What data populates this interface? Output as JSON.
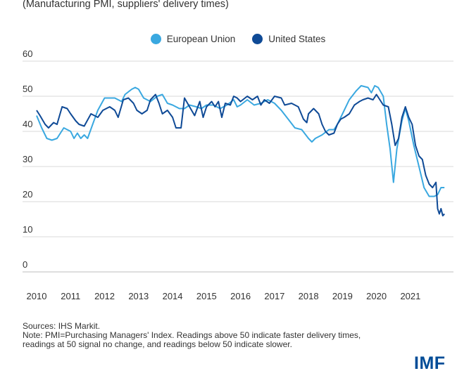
{
  "chart_data": {
    "type": "line",
    "title": "",
    "subtitle": "(Manufacturing PMI, suppliers' delivery times)",
    "xlabel": "",
    "ylabel": "",
    "ylim": [
      0,
      60
    ],
    "yticks": [
      0,
      10,
      20,
      30,
      40,
      50,
      60
    ],
    "xlim": [
      2010,
      2022.1
    ],
    "xticks": [
      2010,
      2011,
      2012,
      2013,
      2014,
      2015,
      2016,
      2017,
      2018,
      2019,
      2020,
      2021
    ],
    "grid": true,
    "legend_position": "top-center",
    "series": [
      {
        "name": "European Union",
        "color": "#3aa8e0",
        "points": [
          [
            2010.0,
            44.5
          ],
          [
            2010.15,
            41
          ],
          [
            2010.3,
            38
          ],
          [
            2010.45,
            37.5
          ],
          [
            2010.6,
            38
          ],
          [
            2010.8,
            41
          ],
          [
            2011.0,
            40
          ],
          [
            2011.1,
            38
          ],
          [
            2011.2,
            39.5
          ],
          [
            2011.3,
            38
          ],
          [
            2011.4,
            39
          ],
          [
            2011.5,
            38
          ],
          [
            2011.65,
            42
          ],
          [
            2011.8,
            46
          ],
          [
            2012.0,
            49.5
          ],
          [
            2012.3,
            49.5
          ],
          [
            2012.5,
            48.5
          ],
          [
            2012.6,
            50.5
          ],
          [
            2012.8,
            52
          ],
          [
            2012.9,
            52.5
          ],
          [
            2013.0,
            52
          ],
          [
            2013.15,
            49.5
          ],
          [
            2013.35,
            48.5
          ],
          [
            2013.55,
            50
          ],
          [
            2013.7,
            50.5
          ],
          [
            2013.85,
            48
          ],
          [
            2014.0,
            47.5
          ],
          [
            2014.2,
            46.5
          ],
          [
            2014.35,
            46.5
          ],
          [
            2014.5,
            47.5
          ],
          [
            2014.7,
            47
          ],
          [
            2014.85,
            46.5
          ],
          [
            2015.0,
            47.5
          ],
          [
            2015.2,
            47.5
          ],
          [
            2015.4,
            46.5
          ],
          [
            2015.6,
            47.5
          ],
          [
            2015.8,
            49
          ],
          [
            2015.9,
            47
          ],
          [
            2016.0,
            47.5
          ],
          [
            2016.2,
            49
          ],
          [
            2016.4,
            47.5
          ],
          [
            2016.6,
            48
          ],
          [
            2016.8,
            49
          ],
          [
            2017.0,
            48
          ],
          [
            2017.2,
            46
          ],
          [
            2017.4,
            43.5
          ],
          [
            2017.6,
            41
          ],
          [
            2017.8,
            40.5
          ],
          [
            2018.0,
            38
          ],
          [
            2018.1,
            37
          ],
          [
            2018.2,
            38
          ],
          [
            2018.4,
            39
          ],
          [
            2018.6,
            40.5
          ],
          [
            2018.75,
            40.5
          ],
          [
            2018.85,
            42
          ],
          [
            2019.0,
            45
          ],
          [
            2019.2,
            49
          ],
          [
            2019.4,
            51.5
          ],
          [
            2019.55,
            53
          ],
          [
            2019.75,
            52.5
          ],
          [
            2019.85,
            51
          ],
          [
            2019.95,
            53
          ],
          [
            2020.05,
            52.5
          ],
          [
            2020.2,
            50
          ],
          [
            2020.3,
            42
          ],
          [
            2020.4,
            35
          ],
          [
            2020.5,
            25.5
          ],
          [
            2020.6,
            35
          ],
          [
            2020.75,
            43
          ],
          [
            2020.85,
            46.5
          ],
          [
            2020.95,
            43
          ],
          [
            2021.1,
            36
          ],
          [
            2021.25,
            30
          ],
          [
            2021.4,
            24
          ],
          [
            2021.55,
            21.5
          ],
          [
            2021.7,
            21.5
          ],
          [
            2021.8,
            22
          ],
          [
            2021.9,
            24
          ],
          [
            2022.0,
            24
          ]
        ]
      },
      {
        "name": "United States",
        "color": "#0f4a96",
        "points": [
          [
            2010.0,
            46
          ],
          [
            2010.1,
            44.5
          ],
          [
            2010.25,
            42
          ],
          [
            2010.35,
            41
          ],
          [
            2010.5,
            42.5
          ],
          [
            2010.6,
            42
          ],
          [
            2010.75,
            47
          ],
          [
            2010.9,
            46.5
          ],
          [
            2011.0,
            45
          ],
          [
            2011.15,
            43
          ],
          [
            2011.25,
            42
          ],
          [
            2011.4,
            41.5
          ],
          [
            2011.6,
            45
          ],
          [
            2011.8,
            44
          ],
          [
            2011.95,
            46
          ],
          [
            2012.15,
            47
          ],
          [
            2012.3,
            46
          ],
          [
            2012.4,
            44
          ],
          [
            2012.55,
            49
          ],
          [
            2012.7,
            49.5
          ],
          [
            2012.85,
            48
          ],
          [
            2012.95,
            46
          ],
          [
            2013.1,
            45
          ],
          [
            2013.25,
            46
          ],
          [
            2013.35,
            49
          ],
          [
            2013.5,
            50.5
          ],
          [
            2013.6,
            48
          ],
          [
            2013.7,
            45
          ],
          [
            2013.85,
            46
          ],
          [
            2014.0,
            44
          ],
          [
            2014.1,
            41
          ],
          [
            2014.25,
            41
          ],
          [
            2014.35,
            49.5
          ],
          [
            2014.5,
            47
          ],
          [
            2014.65,
            44.5
          ],
          [
            2014.8,
            48.5
          ],
          [
            2014.9,
            44
          ],
          [
            2015.0,
            47
          ],
          [
            2015.15,
            48.5
          ],
          [
            2015.25,
            47
          ],
          [
            2015.35,
            48.5
          ],
          [
            2015.45,
            44
          ],
          [
            2015.55,
            48
          ],
          [
            2015.7,
            47.5
          ],
          [
            2015.8,
            50
          ],
          [
            2015.9,
            49.5
          ],
          [
            2016.0,
            48.5
          ],
          [
            2016.2,
            50
          ],
          [
            2016.35,
            49
          ],
          [
            2016.5,
            50
          ],
          [
            2016.6,
            47.5
          ],
          [
            2016.7,
            49
          ],
          [
            2016.85,
            48
          ],
          [
            2017.0,
            50
          ],
          [
            2017.2,
            49.5
          ],
          [
            2017.3,
            47.5
          ],
          [
            2017.5,
            48
          ],
          [
            2017.7,
            47
          ],
          [
            2017.85,
            43.5
          ],
          [
            2017.95,
            42.5
          ],
          [
            2018.0,
            45
          ],
          [
            2018.15,
            46.5
          ],
          [
            2018.3,
            45
          ],
          [
            2018.4,
            42
          ],
          [
            2018.5,
            40
          ],
          [
            2018.6,
            39
          ],
          [
            2018.75,
            39.5
          ],
          [
            2018.85,
            42
          ],
          [
            2018.95,
            43.5
          ],
          [
            2019.05,
            44
          ],
          [
            2019.2,
            45
          ],
          [
            2019.35,
            47.5
          ],
          [
            2019.5,
            48.5
          ],
          [
            2019.6,
            49
          ],
          [
            2019.75,
            49.5
          ],
          [
            2019.9,
            49
          ],
          [
            2020.0,
            50.5
          ],
          [
            2020.1,
            49
          ],
          [
            2020.2,
            47.5
          ],
          [
            2020.35,
            47
          ],
          [
            2020.45,
            42
          ],
          [
            2020.55,
            36
          ],
          [
            2020.65,
            38
          ],
          [
            2020.75,
            44
          ],
          [
            2020.85,
            47
          ],
          [
            2020.95,
            44
          ],
          [
            2021.05,
            42
          ],
          [
            2021.15,
            36
          ],
          [
            2021.25,
            33
          ],
          [
            2021.35,
            32
          ],
          [
            2021.45,
            27.5
          ],
          [
            2021.55,
            25
          ],
          [
            2021.65,
            24
          ],
          [
            2021.75,
            25.5
          ],
          [
            2021.8,
            18
          ],
          [
            2021.85,
            16.5
          ],
          [
            2021.9,
            18
          ],
          [
            2021.95,
            16
          ],
          [
            2022.0,
            16.5
          ]
        ]
      }
    ]
  },
  "notes": {
    "sources": "Sources: IHS Markit.",
    "note_line1": "Note: PMI=Purchasing Managers' Index. Readings above 50 indicate faster delivery times,",
    "note_line2": "readings at 50 signal no change, and readings below 50 indicate slower."
  },
  "logo_text": "IMF"
}
